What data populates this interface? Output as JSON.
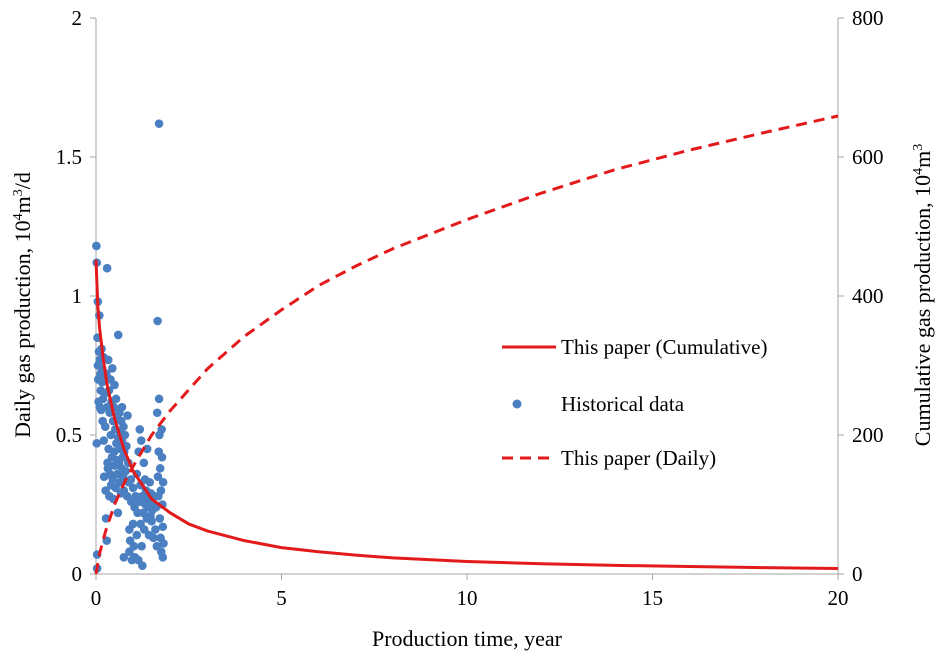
{
  "chart_data": {
    "type": "line+scatter",
    "title": "",
    "xlabel": "Production time, year",
    "ylabel_left_prefix": "Daily gas production, 10",
    "ylabel_left_exp1": "4",
    "ylabel_left_mid": "m",
    "ylabel_left_exp2": "3",
    "ylabel_left_suffix": "/d",
    "ylabel_right_prefix": "Cumulative gas production, 10",
    "ylabel_right_exp1": "4",
    "ylabel_right_mid": "m",
    "ylabel_right_exp2": "3",
    "xlim": [
      0,
      20
    ],
    "ylim_left": [
      0,
      2
    ],
    "ylim_right": [
      0,
      800
    ],
    "x_ticks": [
      {
        "value": 0,
        "label": "0"
      },
      {
        "value": 5,
        "label": "5"
      },
      {
        "value": 10,
        "label": "10"
      },
      {
        "value": 15,
        "label": "15"
      },
      {
        "value": 20,
        "label": "20"
      }
    ],
    "y_left_ticks": [
      {
        "value": 0,
        "label": "0"
      },
      {
        "value": 0.5,
        "label": "0.5"
      },
      {
        "value": 1,
        "label": "1"
      },
      {
        "value": 1.5,
        "label": "1.5"
      },
      {
        "value": 2,
        "label": "2"
      }
    ],
    "y_right_ticks": [
      {
        "value": 0,
        "label": "0"
      },
      {
        "value": 200,
        "label": "200"
      },
      {
        "value": 400,
        "label": "400"
      },
      {
        "value": 600,
        "label": "600"
      },
      {
        "value": 800,
        "label": "800"
      }
    ],
    "legend": {
      "position": "center-right",
      "entries": [
        {
          "label": "This paper (Cumulative)",
          "style": "solid-line",
          "color": "#e31a1c"
        },
        {
          "label": "Historical data",
          "style": "marker",
          "color": "#4a7fc1"
        },
        {
          "label": "This paper (Daily)",
          "style": "dashed-line",
          "color": "#e31a1c"
        }
      ]
    },
    "series": [
      {
        "name": "This paper (Cumulative)",
        "axis": "left",
        "style": "solid",
        "color": "#e31a1c",
        "points": [
          [
            0,
            1.13
          ],
          [
            0.05,
            0.96
          ],
          [
            0.1,
            0.88
          ],
          [
            0.2,
            0.77
          ],
          [
            0.3,
            0.68
          ],
          [
            0.5,
            0.56
          ],
          [
            0.75,
            0.45
          ],
          [
            1,
            0.37
          ],
          [
            1.5,
            0.27
          ],
          [
            2,
            0.22
          ],
          [
            2.5,
            0.18
          ],
          [
            3,
            0.155
          ],
          [
            4,
            0.12
          ],
          [
            5,
            0.095
          ],
          [
            6,
            0.08
          ],
          [
            7,
            0.068
          ],
          [
            8,
            0.058
          ],
          [
            10,
            0.045
          ],
          [
            12,
            0.037
          ],
          [
            14,
            0.031
          ],
          [
            16,
            0.027
          ],
          [
            18,
            0.023
          ],
          [
            20,
            0.02
          ]
        ]
      },
      {
        "name": "This paper (Daily)",
        "axis": "right",
        "style": "dashed",
        "color": "#e31a1c",
        "points": [
          [
            0,
            0
          ],
          [
            0.1,
            30
          ],
          [
            0.25,
            60
          ],
          [
            0.5,
            100
          ],
          [
            0.75,
            130
          ],
          [
            1,
            155
          ],
          [
            1.5,
            200
          ],
          [
            2,
            235
          ],
          [
            2.5,
            265
          ],
          [
            3,
            295
          ],
          [
            4,
            342
          ],
          [
            5,
            380
          ],
          [
            6,
            415
          ],
          [
            7,
            443
          ],
          [
            8,
            468
          ],
          [
            10,
            510
          ],
          [
            12,
            548
          ],
          [
            14,
            582
          ],
          [
            16,
            610
          ],
          [
            18,
            635
          ],
          [
            20,
            659
          ]
        ]
      },
      {
        "name": "Historical data",
        "axis": "left",
        "style": "scatter",
        "color": "#4a7fc1",
        "points": [
          [
            0.01,
            1.18
          ],
          [
            0.02,
            1.12
          ],
          [
            0.02,
            0.47
          ],
          [
            0.03,
            0.07
          ],
          [
            0.03,
            0.02
          ],
          [
            0.04,
            0.85
          ],
          [
            0.05,
            0.98
          ],
          [
            0.05,
            0.75
          ],
          [
            0.06,
            0.7
          ],
          [
            0.07,
            0.62
          ],
          [
            0.08,
            0.8
          ],
          [
            0.09,
            0.93
          ],
          [
            0.1,
            0.6
          ],
          [
            0.1,
            0.77
          ],
          [
            0.12,
            0.72
          ],
          [
            0.13,
            0.66
          ],
          [
            0.14,
            0.59
          ],
          [
            0.15,
            0.81
          ],
          [
            0.16,
            0.69
          ],
          [
            0.17,
            0.74
          ],
          [
            0.18,
            0.55
          ],
          [
            0.19,
            0.63
          ],
          [
            0.2,
            0.78
          ],
          [
            0.21,
            0.48
          ],
          [
            0.22,
            0.35
          ],
          [
            0.23,
            0.7
          ],
          [
            0.24,
            0.65
          ],
          [
            0.25,
            0.53
          ],
          [
            0.26,
            0.3
          ],
          [
            0.27,
            0.2
          ],
          [
            0.28,
            0.72
          ],
          [
            0.29,
            0.12
          ],
          [
            0.3,
            1.1
          ],
          [
            0.3,
            0.6
          ],
          [
            0.31,
            0.4
          ],
          [
            0.32,
            0.38
          ],
          [
            0.33,
            0.77
          ],
          [
            0.34,
            0.45
          ],
          [
            0.35,
            0.66
          ],
          [
            0.36,
            0.28
          ],
          [
            0.37,
            0.58
          ],
          [
            0.38,
            0.36
          ],
          [
            0.39,
            0.7
          ],
          [
            0.4,
            0.5
          ],
          [
            0.41,
            0.32
          ],
          [
            0.42,
            0.62
          ],
          [
            0.43,
            0.42
          ],
          [
            0.44,
            0.74
          ],
          [
            0.45,
            0.34
          ],
          [
            0.46,
            0.55
          ],
          [
            0.47,
            0.27
          ],
          [
            0.48,
            0.6
          ],
          [
            0.49,
            0.44
          ],
          [
            0.5,
            0.68
          ],
          [
            0.5,
            0.39
          ],
          [
            0.52,
            0.52
          ],
          [
            0.53,
            0.31
          ],
          [
            0.54,
            0.63
          ],
          [
            0.55,
            0.47
          ],
          [
            0.56,
            0.41
          ],
          [
            0.57,
            0.57
          ],
          [
            0.58,
            0.36
          ],
          [
            0.59,
            0.22
          ],
          [
            0.6,
            0.86
          ],
          [
            0.6,
            0.49
          ],
          [
            0.62,
            0.4
          ],
          [
            0.63,
            0.58
          ],
          [
            0.64,
            0.33
          ],
          [
            0.65,
            0.51
          ],
          [
            0.66,
            0.45
          ],
          [
            0.67,
            0.29
          ],
          [
            0.68,
            0.55
          ],
          [
            0.69,
            0.38
          ],
          [
            0.7,
            0.6
          ],
          [
            0.7,
            0.48
          ],
          [
            0.72,
            0.42
          ],
          [
            0.73,
            0.35
          ],
          [
            0.74,
            0.53
          ],
          [
            0.75,
            0.3
          ],
          [
            0.75,
            0.06
          ],
          [
            0.76,
            0.44
          ],
          [
            0.78,
            0.5
          ],
          [
            0.8,
            0.37
          ],
          [
            0.82,
            0.46
          ],
          [
            0.84,
            0.28
          ],
          [
            0.85,
            0.57
          ],
          [
            0.87,
            0.4
          ],
          [
            0.88,
            0.33
          ],
          [
            0.9,
            0.16
          ],
          [
            0.9,
            0.08
          ],
          [
            0.92,
            0.12
          ],
          [
            0.94,
            0.34
          ],
          [
            0.95,
            0.26
          ],
          [
            0.97,
            0.05
          ],
          [
            1.0,
            0.18
          ],
          [
            1.0,
            0.31
          ],
          [
            1.02,
            0.1
          ],
          [
            1.04,
            0.24
          ],
          [
            1.05,
            0.06
          ],
          [
            1.07,
            0.28
          ],
          [
            1.1,
            0.36
          ],
          [
            1.1,
            0.14
          ],
          [
            1.12,
            0.22
          ],
          [
            1.14,
            0.05
          ],
          [
            1.15,
            0.44
          ],
          [
            1.17,
            0.26
          ],
          [
            1.18,
            0.52
          ],
          [
            1.2,
            0.32
          ],
          [
            1.2,
            0.18
          ],
          [
            1.22,
            0.48
          ],
          [
            1.23,
            0.1
          ],
          [
            1.25,
            0.28
          ],
          [
            1.25,
            0.03
          ],
          [
            1.27,
            0.22
          ],
          [
            1.29,
            0.4
          ],
          [
            1.3,
            0.16
          ],
          [
            1.32,
            0.34
          ],
          [
            1.33,
            0.25
          ],
          [
            1.35,
            0.3
          ],
          [
            1.37,
            0.2
          ],
          [
            1.38,
            0.45
          ],
          [
            1.4,
            0.27
          ],
          [
            1.42,
            0.24
          ],
          [
            1.43,
            0.14
          ],
          [
            1.45,
            0.33
          ],
          [
            1.47,
            0.21
          ],
          [
            1.48,
            0.29
          ],
          [
            1.5,
            0.26
          ],
          [
            1.5,
            0.19
          ],
          [
            1.52,
            0.23
          ],
          [
            1.55,
            0.13
          ],
          [
            1.57,
            0.28
          ],
          [
            1.6,
            0.16
          ],
          [
            1.62,
            0.24
          ],
          [
            1.64,
            0.1
          ],
          [
            1.65,
            0.58
          ],
          [
            1.66,
            0.91
          ],
          [
            1.67,
            0.35
          ],
          [
            1.68,
            0.28
          ],
          [
            1.69,
            0.44
          ],
          [
            1.7,
            1.62
          ],
          [
            1.7,
            0.63
          ],
          [
            1.71,
            0.5
          ],
          [
            1.72,
            0.2
          ],
          [
            1.73,
            0.38
          ],
          [
            1.74,
            0.13
          ],
          [
            1.75,
            0.3
          ],
          [
            1.76,
            0.08
          ],
          [
            1.77,
            0.52
          ],
          [
            1.78,
            0.42
          ],
          [
            1.79,
            0.25
          ],
          [
            1.8,
            0.17
          ],
          [
            1.8,
            0.06
          ],
          [
            1.81,
            0.33
          ],
          [
            1.82,
            0.11
          ]
        ]
      }
    ]
  }
}
